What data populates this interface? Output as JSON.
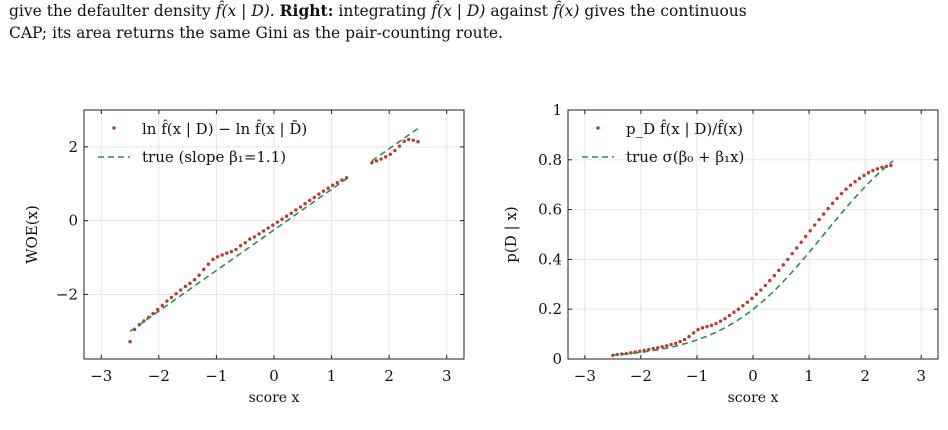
{
  "caption": {
    "line1_text": "give the defaulter density",
    "line1_f1": "f̂(x | D).",
    "line1_right": "Right:",
    "line1_mid": "integrating",
    "line1_f2": "f̂(x | D)",
    "line1_against": "against",
    "line1_f3": "f̂(x)",
    "line1_end": "gives the continuous",
    "line2": "CAP; its area returns the same Gini as the pair-counting route."
  },
  "chart_data": [
    {
      "type": "scatter",
      "title": "",
      "xlabel": "score x",
      "ylabel": "WOE(x)",
      "xlim": [
        -3.3,
        3.3
      ],
      "ylim": [
        -3.75,
        3.0
      ],
      "xticks": [
        -3,
        -2,
        -1,
        0,
        1,
        2,
        3
      ],
      "yticks": [
        -2,
        0,
        2
      ],
      "xtick_labels": [
        "−3",
        "−2",
        "−1",
        "0",
        "1",
        "2",
        "3"
      ],
      "ytick_labels": [
        "−2",
        "0",
        "2"
      ],
      "grid": true,
      "legend_position": "top-left",
      "series": [
        {
          "name": "ln f̂(x | D) − ln f̂(x | D̄)",
          "style": "dotted",
          "color": "#c0392b",
          "x": [
            -2.5,
            -2.42,
            -2.34,
            -2.26,
            -2.18,
            -2.1,
            -2.02,
            -1.94,
            -1.86,
            -1.78,
            -1.7,
            -1.62,
            -1.54,
            -1.46,
            -1.38,
            -1.3,
            -1.22,
            -1.14,
            -1.06,
            -0.98,
            -0.9,
            -0.82,
            -0.74,
            -0.66,
            -0.58,
            -0.5,
            -0.42,
            -0.34,
            -0.26,
            -0.18,
            -0.1,
            -0.02,
            0.06,
            0.14,
            0.22,
            0.3,
            0.38,
            0.46,
            0.54,
            0.62,
            0.7,
            0.78,
            0.86,
            0.94,
            1.02,
            1.1,
            1.18,
            1.26,
            1.7,
            1.78,
            1.86,
            1.94,
            2.02,
            2.1,
            2.18,
            2.26,
            2.34,
            2.42,
            2.5
          ],
          "y": [
            -3.28,
            -2.95,
            -2.82,
            -2.72,
            -2.62,
            -2.52,
            -2.41,
            -2.3,
            -2.18,
            -2.08,
            -1.98,
            -1.88,
            -1.78,
            -1.7,
            -1.6,
            -1.48,
            -1.32,
            -1.18,
            -1.05,
            -0.98,
            -0.93,
            -0.88,
            -0.84,
            -0.78,
            -0.68,
            -0.6,
            -0.5,
            -0.44,
            -0.36,
            -0.28,
            -0.2,
            -0.12,
            -0.04,
            0.04,
            0.12,
            0.2,
            0.29,
            0.37,
            0.46,
            0.55,
            0.63,
            0.72,
            0.8,
            0.88,
            0.96,
            1.03,
            1.1,
            1.16,
            1.57,
            1.62,
            1.67,
            1.73,
            1.8,
            1.9,
            2.02,
            2.15,
            2.2,
            2.18,
            2.14
          ]
        },
        {
          "name": "true (slope β₁=1.1)",
          "style": "dashed",
          "color": "#2e8b57",
          "segments": [
            {
              "x": [
                -2.5,
                1.3
              ],
              "y": [
                -3.0,
                1.18
              ]
            },
            {
              "x": [
                1.7,
                2.5
              ],
              "y": [
                1.62,
                2.5
              ]
            }
          ]
        }
      ]
    },
    {
      "type": "scatter",
      "title": "",
      "xlabel": "score x",
      "ylabel": "p(D | x)",
      "xlim": [
        -3.3,
        3.3
      ],
      "ylim": [
        0,
        1
      ],
      "xticks": [
        -3,
        -2,
        -1,
        0,
        1,
        2,
        3
      ],
      "yticks": [
        0,
        0.2,
        0.4,
        0.6,
        0.8,
        1
      ],
      "xtick_labels": [
        "−3",
        "−2",
        "−1",
        "0",
        "1",
        "2",
        "3"
      ],
      "ytick_labels": [
        "0",
        "0.2",
        "0.4",
        "0.6",
        "0.8",
        "1"
      ],
      "grid": true,
      "legend_position": "top-left",
      "series": [
        {
          "name": "p_D f̂(x | D)/f̂(x)",
          "style": "dotted",
          "color": "#c0392b",
          "x": [
            -2.5,
            -2.42,
            -2.34,
            -2.26,
            -2.18,
            -2.1,
            -2.02,
            -1.94,
            -1.86,
            -1.78,
            -1.7,
            -1.62,
            -1.54,
            -1.46,
            -1.38,
            -1.3,
            -1.22,
            -1.14,
            -1.06,
            -0.98,
            -0.9,
            -0.82,
            -0.74,
            -0.66,
            -0.58,
            -0.5,
            -0.42,
            -0.34,
            -0.26,
            -0.18,
            -0.1,
            -0.02,
            0.06,
            0.14,
            0.22,
            0.3,
            0.38,
            0.46,
            0.54,
            0.62,
            0.7,
            0.78,
            0.86,
            0.94,
            1.02,
            1.1,
            1.18,
            1.26,
            1.34,
            1.42,
            1.5,
            1.58,
            1.66,
            1.74,
            1.82,
            1.9,
            1.98,
            2.06,
            2.14,
            2.22,
            2.3,
            2.38,
            2.46
          ],
          "y": [
            0.015,
            0.018,
            0.02,
            0.022,
            0.025,
            0.028,
            0.031,
            0.035,
            0.038,
            0.042,
            0.045,
            0.049,
            0.053,
            0.058,
            0.063,
            0.07,
            0.078,
            0.09,
            0.105,
            0.118,
            0.125,
            0.13,
            0.135,
            0.142,
            0.152,
            0.162,
            0.175,
            0.188,
            0.2,
            0.214,
            0.228,
            0.243,
            0.26,
            0.277,
            0.295,
            0.315,
            0.335,
            0.356,
            0.378,
            0.4,
            0.423,
            0.446,
            0.469,
            0.492,
            0.515,
            0.538,
            0.56,
            0.582,
            0.604,
            0.625,
            0.645,
            0.664,
            0.682,
            0.698,
            0.712,
            0.725,
            0.737,
            0.748,
            0.757,
            0.764,
            0.77,
            0.774,
            0.777
          ]
        },
        {
          "name": "true σ(β₀ + β₁x)",
          "style": "dashed",
          "color": "#2e8b57",
          "beta0": -1.39,
          "beta1": 1.1,
          "x_range": [
            -2.5,
            2.5
          ]
        }
      ]
    }
  ]
}
